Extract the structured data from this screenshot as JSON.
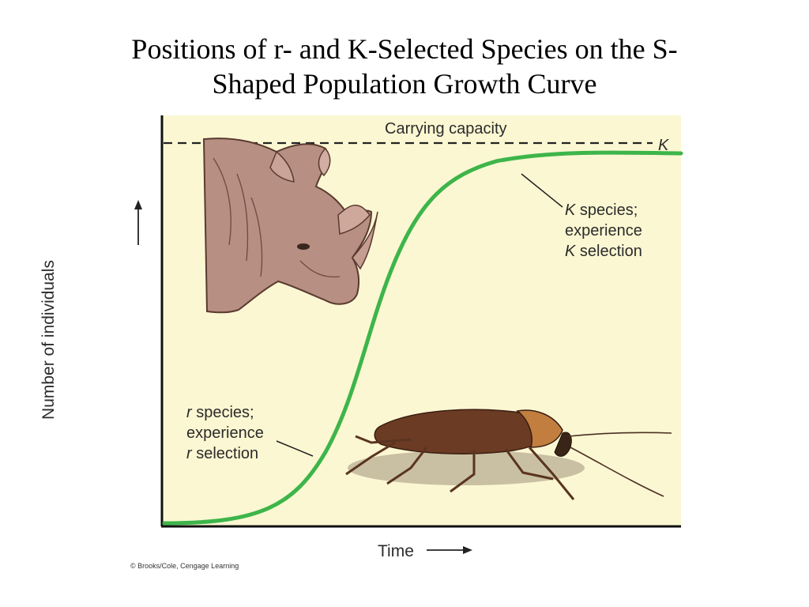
{
  "title": {
    "line1": "Positions of r- and K-Selected Species on the S-",
    "line2": "Shaped Population Growth Curve"
  },
  "diagram": {
    "carrying_capacity_label": "Carrying capacity",
    "k_marker": "K",
    "k_annotation": {
      "line1_italic": "K",
      "line1_rest": " species;",
      "line2": "experience",
      "line3_italic": "K",
      "line3_rest": " selection"
    },
    "r_annotation": {
      "line1_italic": "r",
      "line1_rest": " species;",
      "line2": "experience",
      "line3_italic": "r",
      "line3_rest": " selection"
    },
    "x_axis_label": "Time",
    "y_axis_label": "Number of individuals",
    "curve_color": "#3db54a",
    "illustrations": [
      "rhinoceros-illustration",
      "cockroach-illustration"
    ]
  },
  "credit": "© Brooks/Cole, Cengage Learning"
}
